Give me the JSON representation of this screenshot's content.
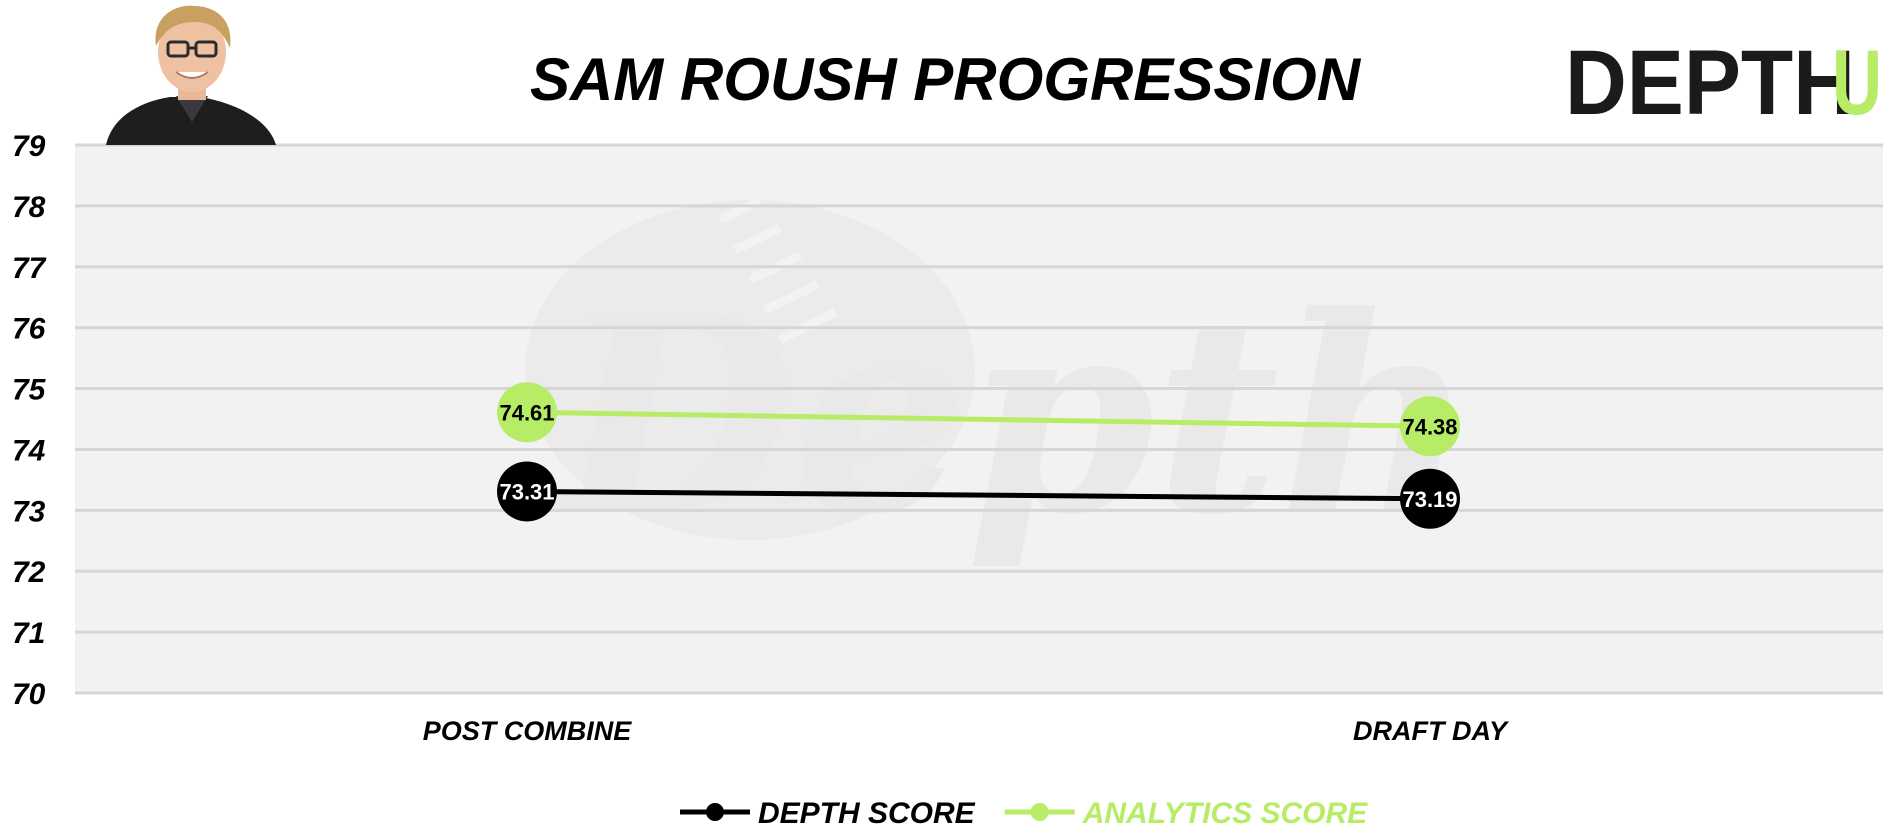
{
  "logo": {
    "main": "DEPTH",
    "accent": "U"
  },
  "watermark": "Depth",
  "colors": {
    "depth": "#000000",
    "analytics": "#b7ec67",
    "plot_bg": "#f2f2f2",
    "grid": "#d6d6d6",
    "logo_main": "#1b1b1b",
    "logo_accent": "#b7ec67"
  },
  "chart_data": {
    "type": "line",
    "title": "SAM ROUSH PROGRESSION",
    "categories": [
      "POST COMBINE",
      "DRAFT DAY"
    ],
    "ylim": [
      70,
      79
    ],
    "yticks": [
      70,
      71,
      72,
      73,
      74,
      75,
      76,
      77,
      78,
      79
    ],
    "grid": true,
    "legend": "bottom-center",
    "series": [
      {
        "name": "DEPTH SCORE",
        "values": [
          73.31,
          73.19
        ],
        "labels": [
          "73.31",
          "73.19"
        ],
        "color": "#000000",
        "label_color": "#ffffff"
      },
      {
        "name": "ANALYTICS SCORE",
        "values": [
          74.61,
          74.38
        ],
        "labels": [
          "74.61",
          "74.38"
        ],
        "color": "#b7ec67",
        "label_color": "#000000"
      }
    ]
  }
}
